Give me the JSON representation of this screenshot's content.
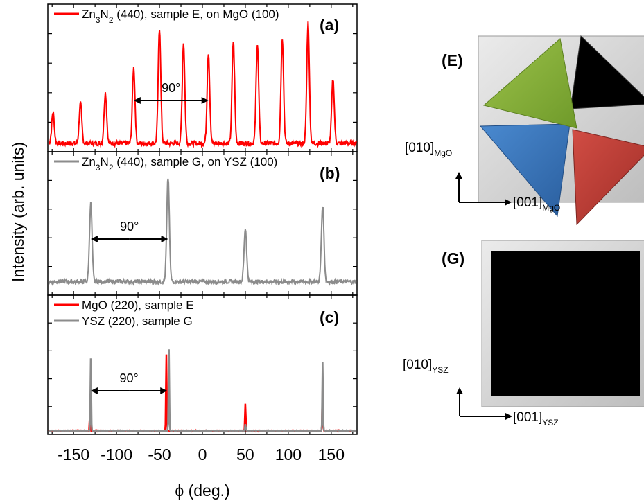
{
  "colors": {
    "red": "#ff0000",
    "gray": "#8c8c8c",
    "green": "#8db33a",
    "black": "#000000",
    "blue": "#3f7fc6",
    "darkred": "#c9423a"
  },
  "chart_data": {
    "type": "line",
    "xlabel": "ϕ (deg.)",
    "ylabel": "Intensity (arb. units)",
    "xlim": [
      -180,
      180
    ],
    "xticks": [
      -150,
      -100,
      -50,
      0,
      50,
      100,
      150
    ],
    "xtick_labels": [
      "-150",
      "-100",
      "-50",
      "0",
      "50",
      "100",
      "150"
    ],
    "panels": [
      {
        "label": "(a)",
        "series": [
          {
            "name": "Zn3N2 (440), sample E, on MgO (100)",
            "color": "#ff0000",
            "peaks": [
              [
                -174,
                0.27
              ],
              [
                -142,
                0.35
              ],
              [
                -113,
                0.44
              ],
              [
                -80,
                0.66
              ],
              [
                -50,
                1.0
              ],
              [
                -22,
                0.87
              ],
              [
                7,
                0.79
              ],
              [
                36,
                0.89
              ],
              [
                64,
                0.87
              ],
              [
                93,
                0.92
              ],
              [
                123,
                1.05
              ],
              [
                152,
                0.56
              ]
            ],
            "baseline": 0.03
          }
        ],
        "annotation": {
          "text": "90°",
          "from": -80,
          "to": 7
        }
      },
      {
        "label": "(b)",
        "series": [
          {
            "name": "Zn3N2 (440), sample G, on YSZ (100)",
            "color": "#8c8c8c",
            "peaks": [
              [
                -130,
                0.75
              ],
              [
                -40,
                1.0
              ],
              [
                50,
                0.51
              ],
              [
                140,
                0.73
              ]
            ],
            "baseline": 0.05
          }
        ],
        "annotation": {
          "text": "90°",
          "from": -130,
          "to": -40
        }
      },
      {
        "label": "(c)",
        "series": [
          {
            "name": "MgO (220), sample E",
            "color": "#ff0000",
            "peaks": [
              [
                -131,
                0.18
              ],
              [
                -42,
                0.85
              ],
              [
                50,
                0.3
              ],
              [
                140,
                0.5
              ]
            ],
            "baseline": 0.01
          },
          {
            "name": "YSZ (220), sample G",
            "color": "#8c8c8c",
            "peaks": [
              [
                -130,
                0.8
              ],
              [
                -39,
                0.9
              ],
              [
                50,
                0.07
              ],
              [
                140,
                0.76
              ]
            ],
            "baseline": 0.01
          }
        ],
        "annotation": {
          "text": "90°",
          "from": -130,
          "to": -41
        }
      }
    ]
  },
  "insets": [
    {
      "label": "(E)",
      "vertical_dir": "[010]",
      "vertical_sub": "MgO",
      "horizontal_dir": "[001]",
      "horizontal_sub": "MgO"
    },
    {
      "label": "(G)",
      "vertical_dir": "[010]",
      "vertical_sub": "YSZ",
      "horizontal_dir": "[001]",
      "horizontal_sub": "YSZ"
    }
  ],
  "legend": {
    "a_line1_main": "Zn",
    "a_sub1": "3",
    "a_N": "N",
    "a_sub2": "2",
    "a_rest": " (440), sample E, on MgO (100)",
    "b_main": "Zn",
    "b_sub1": "3",
    "b_N": "N",
    "b_sub2": "2",
    "b_rest": " (440), sample G, on YSZ (100)",
    "c1": "MgO (220), sample E",
    "c2": "YSZ (220), sample G"
  }
}
